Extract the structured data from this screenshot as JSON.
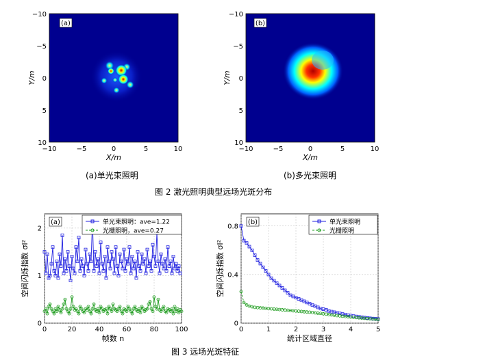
{
  "figure2": {
    "caption": "图 2   激光照明典型远场光斑分布",
    "panel_a": {
      "tag": "(a)",
      "subcaption": "(a)单光束照明",
      "xlabel": "X/m",
      "ylabel": "Y/m",
      "xticks": [
        "−10",
        "−5",
        "0",
        "5",
        "10"
      ],
      "yticks": [
        "−10",
        "−5",
        "0",
        "5",
        "10"
      ]
    },
    "panel_b": {
      "tag": "(b)",
      "subcaption": "(b)多光束照明",
      "xlabel": "X/m",
      "ylabel": "Y/m",
      "xticks": [
        "−10",
        "−5",
        "0",
        "5",
        "10"
      ],
      "yticks": [
        "−10",
        "−5",
        "0",
        "5",
        "10"
      ]
    },
    "colors": {
      "background": "#00008f",
      "mid": "#00ffff",
      "high": "#ffff00",
      "peak": "#c00000"
    }
  },
  "figure3": {
    "caption": "图 3   远场光斑特征",
    "colors": {
      "single": "#2020e0",
      "multi": "#1a9a1a"
    }
  },
  "chart_data": [
    {
      "type": "line",
      "panel": "(a)",
      "xlabel": "帧数 n",
      "ylabel": "空间闪烁指数 σI²",
      "xlim": [
        0,
        100
      ],
      "ylim": [
        0,
        2.3
      ],
      "xticks": [
        "0",
        "20",
        "40",
        "60",
        "80",
        "100"
      ],
      "yticks": [
        "0",
        "1",
        "2"
      ],
      "legend_position": "top",
      "series": [
        {
          "name": "单光束照明：ave=1.22",
          "marker": "square",
          "values": [
            1.5,
            1.05,
            1.45,
            0.95,
            1.0,
            1.25,
            1.6,
            1.1,
            1.0,
            1.3,
            0.95,
            1.45,
            1.2,
            1.85,
            1.05,
            1.35,
            1.1,
            1.5,
            1.2,
            0.9,
            1.4,
            1.15,
            1.05,
            1.6,
            1.3,
            1.8,
            1.1,
            1.35,
            1.2,
            1.0,
            1.55,
            1.25,
            1.1,
            1.45,
            1.3,
            2.2,
            1.1,
            1.5,
            1.2,
            1.35,
            1.05,
            1.7,
            1.25,
            1.1,
            1.4,
            0.95,
            1.6,
            1.3,
            1.15,
            1.5,
            1.35,
            1.05,
            1.6,
            1.2,
            1.0,
            1.45,
            1.3,
            1.15,
            1.55,
            1.1,
            1.35,
            1.25,
            1.6,
            1.05,
            1.4,
            1.15,
            1.3,
            0.95,
            1.5,
            1.2,
            1.1,
            1.45,
            1.25,
            1.35,
            1.05,
            1.55,
            1.2,
            1.3,
            1.1,
            1.65,
            1.4,
            1.2,
            1.9,
            1.3,
            1.05,
            1.45,
            1.25,
            1.15,
            1.35,
            1.1,
            1.6,
            1.2,
            1.3,
            1.05,
            1.4,
            1.15,
            1.25,
            1.1,
            1.2,
            1.05
          ]
        },
        {
          "name": "光栅照明，ave=0.27",
          "marker": "circle",
          "values": [
            0.25,
            0.3,
            0.2,
            0.35,
            0.4,
            0.3,
            0.25,
            0.2,
            0.3,
            0.25,
            0.35,
            0.28,
            0.22,
            0.3,
            0.4,
            0.5,
            0.3,
            0.25,
            0.2,
            0.3,
            0.55,
            0.35,
            0.28,
            0.3,
            0.25,
            0.2,
            0.35,
            0.3,
            0.25,
            0.22,
            0.3,
            0.28,
            0.35,
            0.25,
            0.2,
            0.3,
            0.4,
            0.28,
            0.25,
            0.3,
            0.22,
            0.35,
            0.3,
            0.25,
            0.28,
            0.3,
            0.2,
            0.35,
            0.3,
            0.25,
            0.4,
            0.3,
            0.28,
            0.25,
            0.3,
            0.35,
            0.25,
            0.2,
            0.3,
            0.28,
            0.25,
            0.35,
            0.3,
            0.25,
            0.2,
            0.3,
            0.35,
            0.28,
            0.25,
            0.3,
            0.22,
            0.35,
            0.3,
            0.25,
            0.28,
            0.3,
            0.4,
            0.45,
            0.3,
            0.25,
            0.55,
            0.35,
            0.3,
            0.5,
            0.28,
            0.25,
            0.3,
            0.35,
            0.25,
            0.22,
            0.3,
            0.28,
            0.25,
            0.3,
            0.2,
            0.35,
            0.25,
            0.3,
            0.22,
            0.28,
            0.25
          ]
        }
      ]
    },
    {
      "type": "line",
      "panel": "(b)",
      "xlabel": "统计区域直径",
      "ylabel": "空间闪烁指数 σI²",
      "xlim": [
        0,
        5
      ],
      "ylim": [
        0,
        0.9
      ],
      "xticks": [
        "0",
        "1",
        "2",
        "3",
        "4",
        "5"
      ],
      "yticks": [
        "0",
        "0.4",
        "0.8"
      ],
      "legend_position": "top-right",
      "series": [
        {
          "name": "单光束照明",
          "marker": "square",
          "x": [
            0,
            0.1,
            0.2,
            0.3,
            0.4,
            0.5,
            0.6,
            0.7,
            0.8,
            0.9,
            1.0,
            1.1,
            1.2,
            1.3,
            1.4,
            1.5,
            1.6,
            1.7,
            1.8,
            1.9,
            2.0,
            2.1,
            2.2,
            2.3,
            2.4,
            2.5,
            2.6,
            2.7,
            2.8,
            2.9,
            3.0,
            3.1,
            3.2,
            3.3,
            3.4,
            3.5,
            3.6,
            3.7,
            3.8,
            3.9,
            4.0,
            4.1,
            4.2,
            4.3,
            4.4,
            4.5,
            4.6,
            4.7,
            4.8,
            4.9,
            5.0
          ],
          "values": [
            0.8,
            0.68,
            0.66,
            0.63,
            0.6,
            0.56,
            0.52,
            0.49,
            0.46,
            0.43,
            0.4,
            0.37,
            0.35,
            0.33,
            0.31,
            0.29,
            0.27,
            0.25,
            0.23,
            0.22,
            0.21,
            0.2,
            0.19,
            0.18,
            0.17,
            0.16,
            0.15,
            0.14,
            0.13,
            0.12,
            0.115,
            0.11,
            0.1,
            0.095,
            0.09,
            0.085,
            0.08,
            0.075,
            0.07,
            0.066,
            0.062,
            0.058,
            0.055,
            0.052,
            0.049,
            0.046,
            0.043,
            0.04,
            0.038,
            0.036,
            0.034
          ]
        },
        {
          "name": "光栅照明",
          "marker": "circle",
          "x": [
            0,
            0.1,
            0.2,
            0.3,
            0.4,
            0.5,
            0.6,
            0.7,
            0.8,
            0.9,
            1.0,
            1.1,
            1.2,
            1.3,
            1.4,
            1.5,
            1.6,
            1.7,
            1.8,
            1.9,
            2.0,
            2.1,
            2.2,
            2.3,
            2.4,
            2.5,
            2.6,
            2.7,
            2.8,
            2.9,
            3.0,
            3.1,
            3.2,
            3.3,
            3.4,
            3.5,
            3.6,
            3.7,
            3.8,
            3.9,
            4.0,
            4.1,
            4.2,
            4.3,
            4.4,
            4.5,
            4.6,
            4.7,
            4.8,
            4.9,
            5.0
          ],
          "values": [
            0.26,
            0.17,
            0.15,
            0.14,
            0.135,
            0.13,
            0.128,
            0.126,
            0.124,
            0.122,
            0.12,
            0.118,
            0.116,
            0.114,
            0.112,
            0.11,
            0.108,
            0.106,
            0.104,
            0.102,
            0.1,
            0.098,
            0.096,
            0.094,
            0.092,
            0.09,
            0.088,
            0.085,
            0.082,
            0.08,
            0.077,
            0.074,
            0.071,
            0.068,
            0.065,
            0.062,
            0.06,
            0.057,
            0.055,
            0.052,
            0.05,
            0.048,
            0.046,
            0.044,
            0.042,
            0.04,
            0.038,
            0.036,
            0.034,
            0.032,
            0.03
          ]
        }
      ]
    }
  ]
}
